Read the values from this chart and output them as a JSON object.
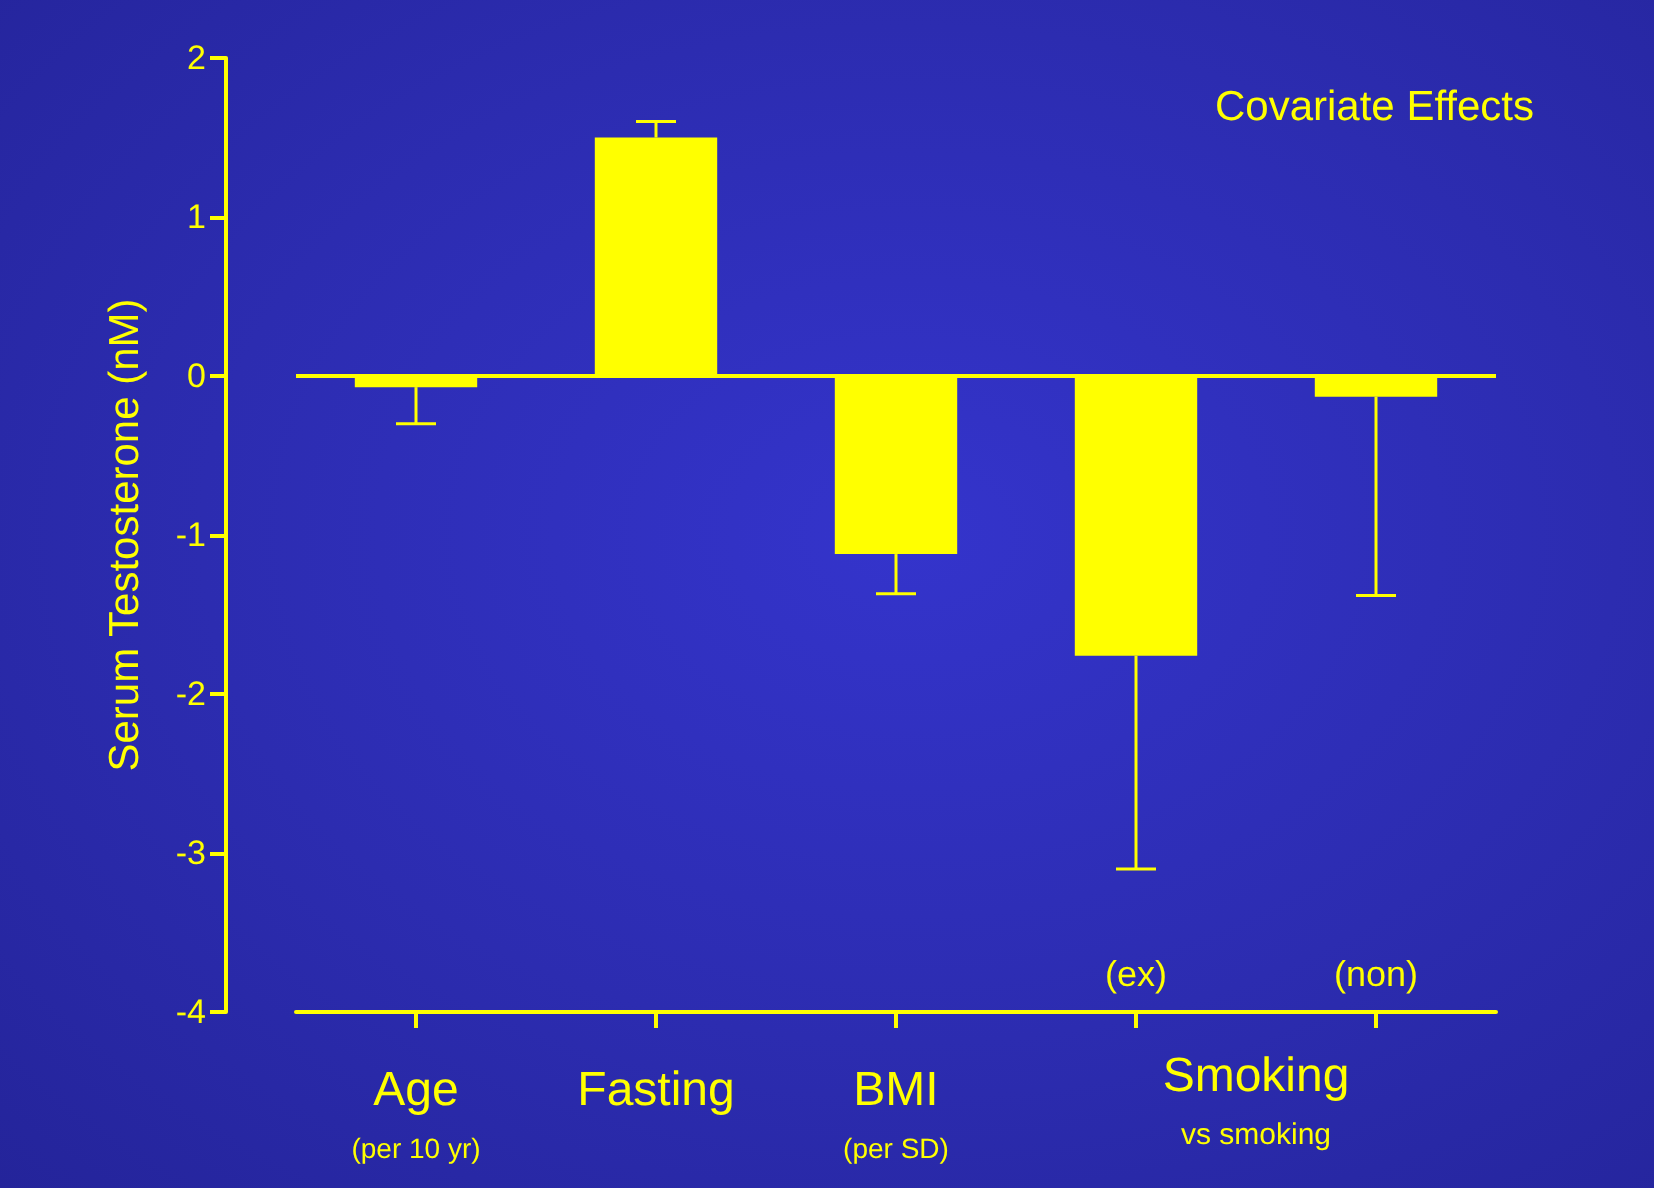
{
  "chart_data": {
    "type": "bar",
    "title": "Covariate Effects",
    "ylabel": "Serum Testosterone (nM)",
    "categories": [
      "Age\n(per 10 yr)",
      "Fasting",
      "BMI\n(per SD)",
      "(ex)",
      "(non)"
    ],
    "values": [
      -0.07,
      1.5,
      -1.12,
      -1.76,
      -0.13
    ],
    "errors": [
      [
        -0.3,
        -0.07
      ],
      [
        1.5,
        1.6
      ],
      [
        -1.37,
        -1.12
      ],
      [
        -3.1,
        -1.76
      ],
      [
        -1.38,
        -0.13
      ]
    ],
    "color": "#ffff00",
    "annotations": [
      "Smoking",
      "vs smoking"
    ],
    "ylim": [
      -4,
      2
    ],
    "yticks": [
      -4,
      -3,
      -2,
      -1,
      0,
      1,
      2
    ],
    "ref_lines": [
      {
        "axis": "y",
        "value": 0,
        "color": "#ffff00"
      }
    ],
    "grid": false
  }
}
